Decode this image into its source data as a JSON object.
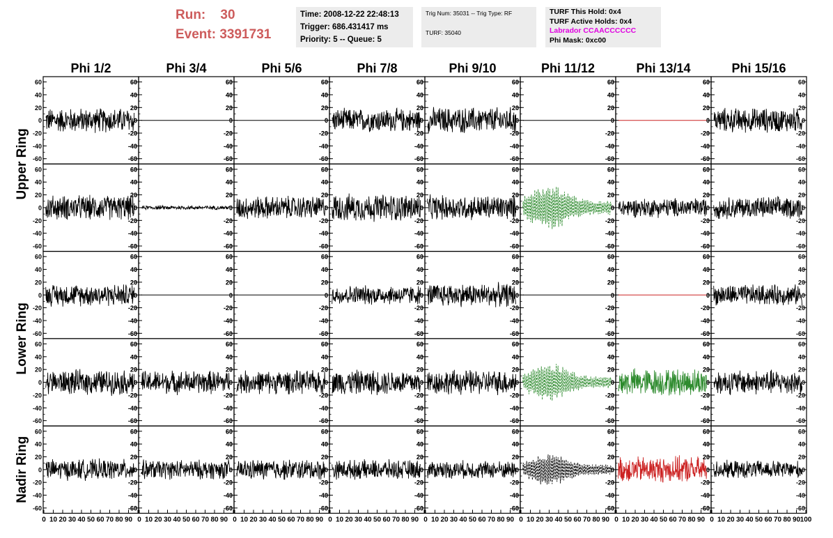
{
  "header": {
    "run_label": "Run:",
    "run_value": "30",
    "event_label": "Event:",
    "event_value": "3391731"
  },
  "info_box_1": {
    "time": "Time: 2008-12-22 22:48:13",
    "trigger": "Trigger: 686.431417 ms",
    "priority": "Priority: 5 -- Queue: 5"
  },
  "info_box_2": {
    "trig": "Trig Num: 35031 -- Trig Type: RF",
    "turf": "TURF: 35040"
  },
  "info_box_3": {
    "this_hold": "TURF This Hold: 0x4",
    "active_holds": "TURF Active Holds: 0x4",
    "labrador": "Labrador CCAACCCCCC",
    "phi_mask": "Phi Mask: 0xc00"
  },
  "colors": {
    "header_red": "#cd5c5c",
    "trace_black": "#000000",
    "trace_green": "#2e8b2e",
    "trace_red": "#cc2222",
    "labrador_magenta": "#e000e0"
  },
  "chart_data": {
    "type": "line",
    "columns": [
      "Phi 1/2",
      "Phi 3/4",
      "Phi 5/6",
      "Phi 7/8",
      "Phi 9/10",
      "Phi 11/12",
      "Phi 13/14",
      "Phi 15/16"
    ],
    "row_labels": [
      "Upper Ring",
      "Lower Ring",
      "Nadir Ring"
    ],
    "ylim": [
      -65,
      65
    ],
    "yticks": [
      -60,
      -40,
      -20,
      0,
      20,
      40,
      60
    ],
    "xlim": [
      0,
      100
    ],
    "xticks": [
      0,
      10,
      20,
      30,
      40,
      50,
      60,
      70,
      80,
      90,
      100
    ],
    "xtick_labels": [
      "0",
      "10",
      "20",
      "30",
      "40",
      "50",
      "60",
      "70",
      "80",
      "90",
      "100"
    ],
    "panel_rows": [
      [
        {
          "style": "noise",
          "amp": 18,
          "color": "black"
        },
        {
          "style": "flat",
          "color": "black"
        },
        {
          "style": "flat",
          "color": "black"
        },
        {
          "style": "noise",
          "amp": 17,
          "color": "black"
        },
        {
          "style": "noise",
          "amp": 19,
          "color": "black"
        },
        {
          "style": "flat",
          "color": "black"
        },
        {
          "style": "flat",
          "color": "red"
        },
        {
          "style": "noise",
          "amp": 18,
          "color": "black"
        }
      ],
      [
        {
          "style": "noise",
          "amp": 18,
          "color": "black"
        },
        {
          "style": "noise",
          "amp": 3,
          "color": "black"
        },
        {
          "style": "noise",
          "amp": 17,
          "color": "black"
        },
        {
          "style": "noise",
          "amp": 20,
          "color": "black"
        },
        {
          "style": "noise",
          "amp": 18,
          "color": "black"
        },
        {
          "style": "pulse",
          "amp": 30,
          "color": "green"
        },
        {
          "style": "noise",
          "amp": 14,
          "color": "black"
        },
        {
          "style": "noise",
          "amp": 16,
          "color": "black"
        }
      ],
      [
        {
          "style": "noise",
          "amp": 16,
          "color": "black"
        },
        {
          "style": "flat",
          "color": "black"
        },
        {
          "style": "flat",
          "color": "black"
        },
        {
          "style": "noise",
          "amp": 14,
          "color": "black"
        },
        {
          "style": "noise",
          "amp": 17,
          "color": "black"
        },
        {
          "style": "flat",
          "color": "black"
        },
        {
          "style": "flat",
          "color": "red"
        },
        {
          "style": "noise",
          "amp": 15,
          "color": "black"
        }
      ],
      [
        {
          "style": "noise",
          "amp": 18,
          "color": "black"
        },
        {
          "style": "noise",
          "amp": 17,
          "color": "black"
        },
        {
          "style": "noise",
          "amp": 17,
          "color": "black"
        },
        {
          "style": "noise",
          "amp": 18,
          "color": "black"
        },
        {
          "style": "noise",
          "amp": 18,
          "color": "black"
        },
        {
          "style": "pulse",
          "amp": 25,
          "color": "green"
        },
        {
          "style": "noise",
          "amp": 20,
          "color": "green"
        },
        {
          "style": "noise",
          "amp": 18,
          "color": "black"
        }
      ],
      [
        {
          "style": "noise",
          "amp": 15,
          "color": "black"
        },
        {
          "style": "noise",
          "amp": 14,
          "color": "black"
        },
        {
          "style": "noise",
          "amp": 15,
          "color": "black"
        },
        {
          "style": "noise",
          "amp": 14,
          "color": "black"
        },
        {
          "style": "noise",
          "amp": 13,
          "color": "black"
        },
        {
          "style": "pulse",
          "amp": 22,
          "color": "black"
        },
        {
          "style": "noise",
          "amp": 19,
          "color": "red"
        },
        {
          "style": "noise",
          "amp": 13,
          "color": "black"
        }
      ]
    ]
  }
}
